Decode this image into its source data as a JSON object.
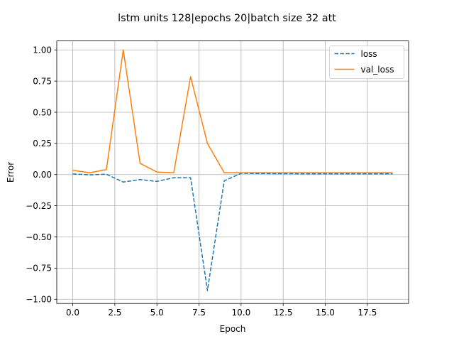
{
  "chart_data": {
    "type": "line",
    "title": "lstm units 128|epochs 20|batch size 32 att",
    "xlabel": "Epoch",
    "ylabel": "Error",
    "xlim": [
      -0.95,
      19.95
    ],
    "ylim": [
      -1.0339,
      1.0719
    ],
    "grid": true,
    "legend_position": "top-right",
    "x_ticks": [
      0.0,
      2.5,
      5.0,
      7.5,
      10.0,
      12.5,
      15.0,
      17.5
    ],
    "x_tick_labels": [
      "0.0",
      "2.5",
      "5.0",
      "7.5",
      "10.0",
      "12.5",
      "15.0",
      "17.5"
    ],
    "y_ticks": [
      -1.0,
      -0.75,
      -0.5,
      -0.25,
      0.0,
      0.25,
      0.5,
      0.75,
      1.0
    ],
    "y_tick_labels": [
      "−1.00",
      "−0.75",
      "−0.50",
      "−0.25",
      "0.00",
      "0.25",
      "0.50",
      "0.75",
      "1.00"
    ],
    "x": [
      0,
      1,
      2,
      3,
      4,
      5,
      6,
      7,
      8,
      9,
      10,
      11,
      12,
      13,
      14,
      15,
      16,
      17,
      18,
      19
    ],
    "series": [
      {
        "name": "loss",
        "color": "#1f77b4",
        "style": "dashed",
        "values": [
          0.005,
          -0.002,
          0.003,
          -0.06,
          -0.04,
          -0.055,
          -0.025,
          -0.025,
          -0.93,
          -0.05,
          0.01,
          0.008,
          0.007,
          0.007,
          0.006,
          0.006,
          0.006,
          0.006,
          0.006,
          0.006
        ]
      },
      {
        "name": "val_loss",
        "color": "#ff7f0e",
        "style": "solid",
        "values": [
          0.035,
          0.015,
          0.04,
          1.0,
          0.09,
          0.02,
          0.015,
          0.785,
          0.25,
          0.015,
          0.015,
          0.015,
          0.015,
          0.015,
          0.015,
          0.015,
          0.015,
          0.015,
          0.015,
          0.015
        ]
      }
    ]
  }
}
